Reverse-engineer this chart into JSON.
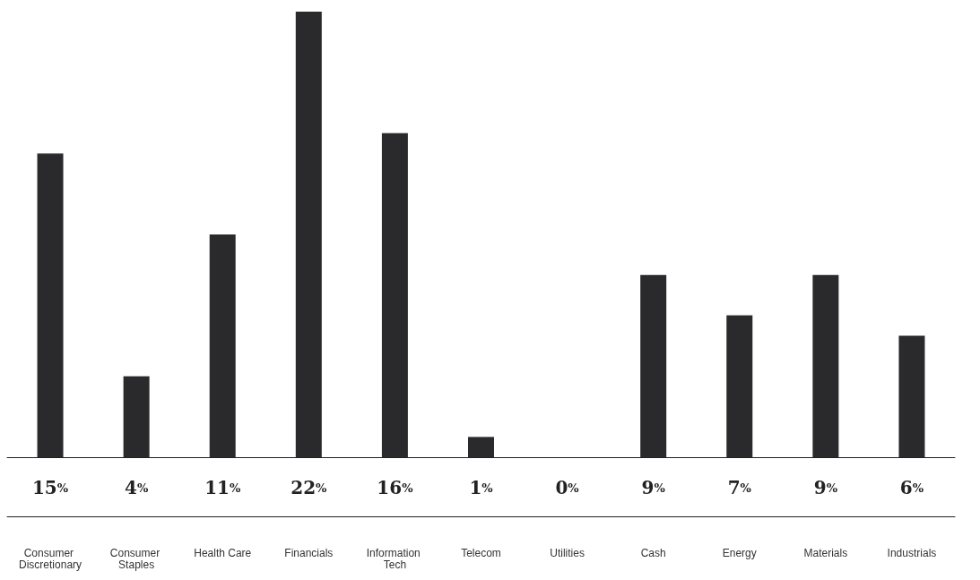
{
  "chart_data": {
    "type": "bar",
    "categories": [
      "Consumer Discretionary",
      "Consumer Staples",
      "Health Care",
      "Financials",
      "Information Tech",
      "Telecom",
      "Utilities",
      "Cash",
      "Energy",
      "Materials",
      "Industrials"
    ],
    "values": [
      15,
      4,
      11,
      22,
      16,
      1,
      0,
      9,
      7,
      9,
      6
    ],
    "value_labels": [
      "15%",
      "4%",
      "11%",
      "22%",
      "16%",
      "1%",
      "0%",
      "9%",
      "7%",
      "9%",
      "6%"
    ],
    "color": "#2a2a2c"
  }
}
